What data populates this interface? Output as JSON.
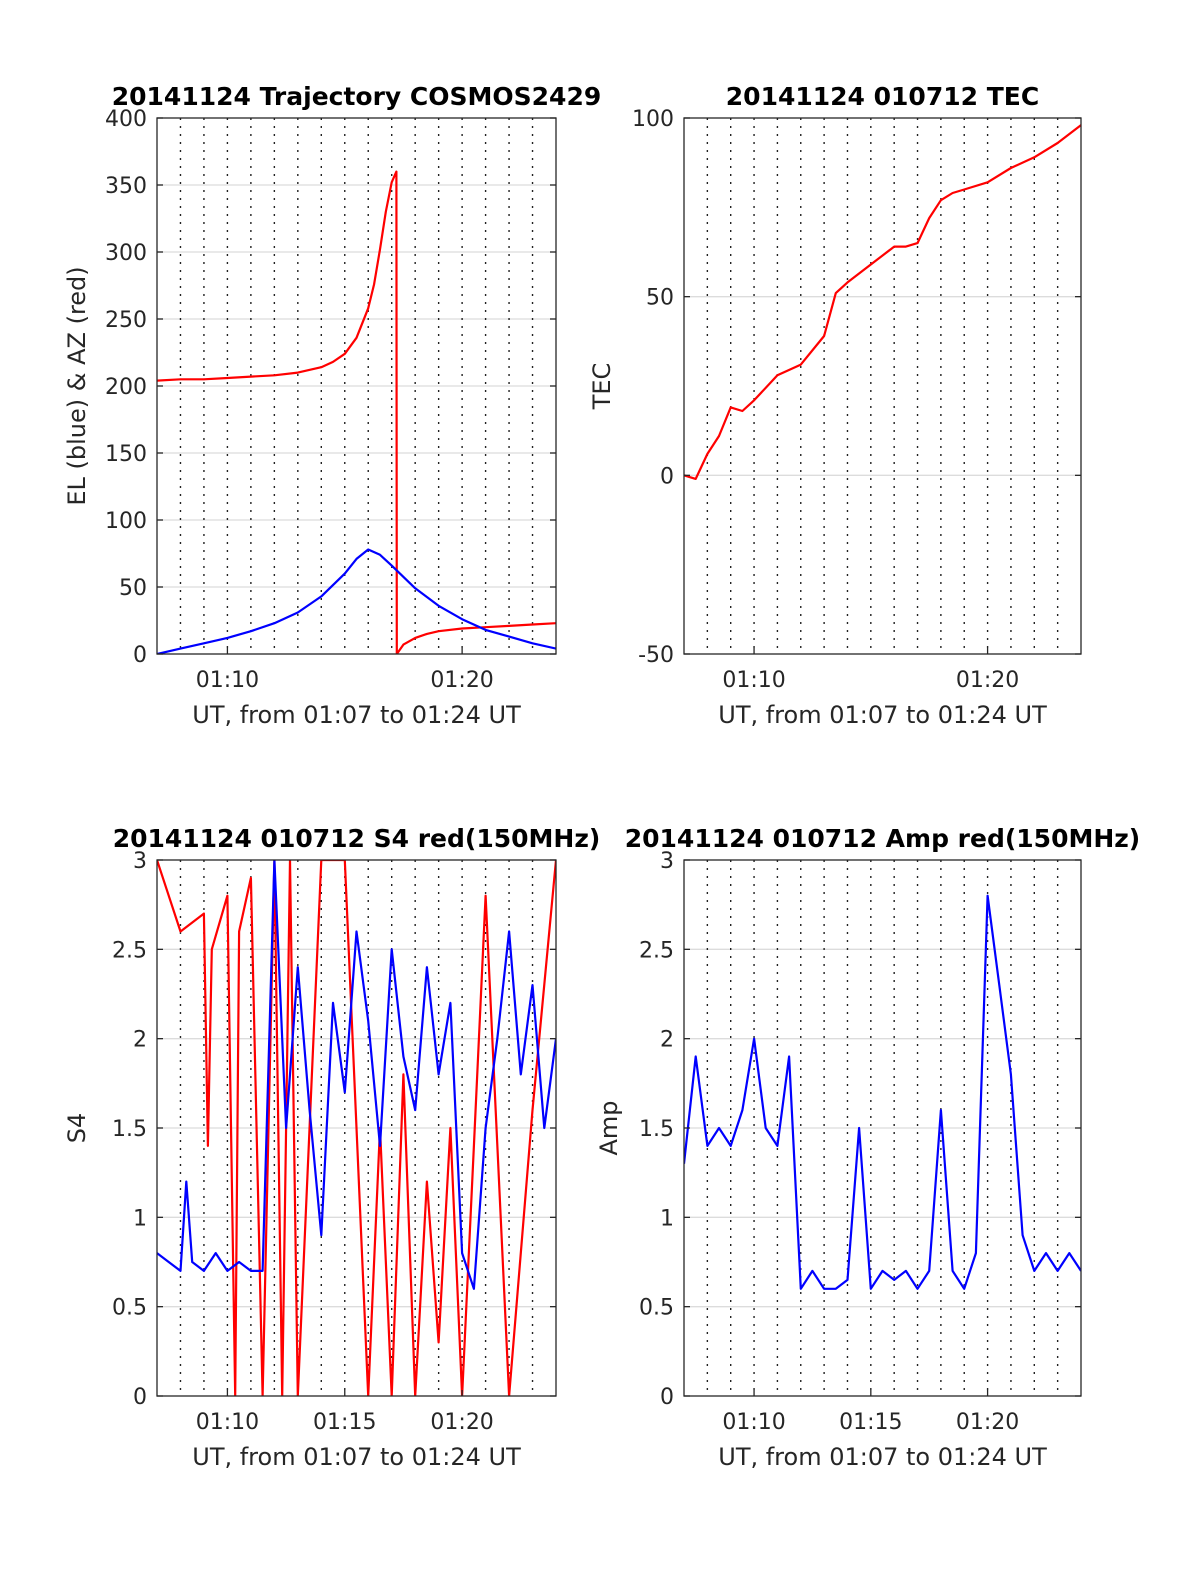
{
  "x_axis": {
    "label": "UT, from 01:07 to 01:24 UT",
    "range": [
      "01:07",
      "01:24"
    ]
  },
  "chart_data": [
    {
      "id": "trajectory",
      "type": "line",
      "title": "20141124 Trajectory COSMOS2429",
      "xlabel": "UT, from 01:07 to 01:24 UT",
      "ylabel": "EL (blue) & AZ (red)",
      "xlim": [
        "01:07",
        "01:24"
      ],
      "ylim": [
        0,
        400
      ],
      "yticks": [
        0,
        50,
        100,
        150,
        200,
        250,
        300,
        350,
        400
      ],
      "xticks": [
        "01:10",
        "01:20"
      ],
      "grid": true,
      "series": [
        {
          "color": "#ff0000",
          "x": [
            "01:07:00",
            "01:08:00",
            "01:09:00",
            "01:10:00",
            "01:11:00",
            "01:12:00",
            "01:13:00",
            "01:14:00",
            "01:14:30",
            "01:15:00",
            "01:15:30",
            "01:16:00",
            "01:16:15",
            "01:16:30",
            "01:16:45",
            "01:17:00",
            "01:17:12",
            "01:17:13",
            "01:17:30",
            "01:18:00",
            "01:18:30",
            "01:19:00",
            "01:20:00",
            "01:21:00",
            "01:22:00",
            "01:23:00",
            "01:24:00"
          ],
          "values": [
            204,
            205,
            205,
            206,
            207,
            208,
            210,
            214,
            218,
            224,
            236,
            258,
            276,
            302,
            330,
            352,
            360,
            0,
            7,
            12,
            15,
            17,
            19,
            20,
            21,
            22,
            23
          ]
        },
        {
          "color": "#0000ff",
          "x": [
            "01:07:00",
            "01:08:00",
            "01:09:00",
            "01:10:00",
            "01:11:00",
            "01:12:00",
            "01:13:00",
            "01:14:00",
            "01:15:00",
            "01:15:30",
            "01:16:00",
            "01:16:30",
            "01:17:00",
            "01:18:00",
            "01:19:00",
            "01:20:00",
            "01:21:00",
            "01:22:00",
            "01:23:00",
            "01:24:00"
          ],
          "values": [
            0,
            4,
            8,
            12,
            17,
            23,
            31,
            43,
            60,
            71,
            78,
            74,
            66,
            49,
            36,
            26,
            18,
            13,
            8,
            4
          ]
        }
      ]
    },
    {
      "id": "tec",
      "type": "line",
      "title": "20141124 010712 TEC",
      "xlabel": "UT, from 01:07 to 01:24 UT",
      "ylabel": "TEC",
      "xlim": [
        "01:07",
        "01:24"
      ],
      "ylim": [
        -50,
        100
      ],
      "yticks": [
        -50,
        0,
        50,
        100
      ],
      "xticks": [
        "01:10",
        "01:20"
      ],
      "grid": true,
      "series": [
        {
          "color": "#ff0000",
          "x": [
            "01:07:00",
            "01:07:30",
            "01:08:00",
            "01:08:30",
            "01:09:00",
            "01:09:30",
            "01:10:00",
            "01:11:00",
            "01:12:00",
            "01:13:00",
            "01:13:30",
            "01:14:00",
            "01:15:00",
            "01:16:00",
            "01:16:30",
            "01:17:00",
            "01:17:30",
            "01:18:00",
            "01:18:30",
            "01:19:00",
            "01:20:00",
            "01:21:00",
            "01:22:00",
            "01:23:00",
            "01:24:00"
          ],
          "values": [
            0,
            -1,
            6,
            11,
            19,
            18,
            21,
            28,
            31,
            39,
            51,
            54,
            59,
            64,
            64,
            65,
            72,
            77,
            79,
            80,
            82,
            86,
            89,
            93,
            98
          ]
        }
      ]
    },
    {
      "id": "s4",
      "type": "line",
      "title": "20141124 010712 S4 red(150MHz)",
      "xlabel": "UT, from 01:07 to 01:24 UT",
      "ylabel": "S4",
      "xlim": [
        "01:07",
        "01:24"
      ],
      "ylim": [
        0,
        3
      ],
      "yticks": [
        0,
        0.5,
        1,
        1.5,
        2,
        2.5,
        3
      ],
      "xticks": [
        "01:10",
        "01:15",
        "01:20"
      ],
      "grid": true,
      "series": [
        {
          "color": "#ff0000",
          "x": [
            "01:07:00",
            "01:08:00",
            "01:09:00",
            "01:09:10",
            "01:09:20",
            "01:10:00",
            "01:10:20",
            "01:10:30",
            "01:11:00",
            "01:11:30",
            "01:12:00",
            "01:12:20",
            "01:12:40",
            "01:13:00",
            "01:14:00",
            "01:15:00",
            "01:16:00",
            "01:16:30",
            "01:17:00",
            "01:17:30",
            "01:18:00",
            "01:18:30",
            "01:19:00",
            "01:19:30",
            "01:20:00",
            "01:20:30",
            "01:21:00",
            "01:22:00",
            "01:23:00",
            "01:24:00"
          ],
          "values": [
            3,
            2.6,
            2.7,
            1.4,
            2.5,
            2.8,
            0,
            2.6,
            2.9,
            0,
            3,
            0,
            3,
            0,
            3,
            3,
            0,
            1.5,
            0,
            1.8,
            0,
            1.2,
            0.3,
            1.5,
            0,
            1.4,
            2.8,
            0,
            1.6,
            3
          ]
        },
        {
          "color": "#0000ff",
          "x": [
            "01:07:00",
            "01:07:30",
            "01:08:00",
            "01:08:15",
            "01:08:30",
            "01:09:00",
            "01:09:30",
            "01:10:00",
            "01:10:30",
            "01:11:00",
            "01:11:30",
            "01:12:00",
            "01:12:30",
            "01:13:00",
            "01:13:30",
            "01:14:00",
            "01:14:30",
            "01:15:00",
            "01:15:30",
            "01:16:00",
            "01:16:30",
            "01:17:00",
            "01:17:30",
            "01:18:00",
            "01:18:30",
            "01:19:00",
            "01:19:30",
            "01:20:00",
            "01:20:30",
            "01:21:00",
            "01:21:30",
            "01:22:00",
            "01:22:30",
            "01:23:00",
            "01:23:30",
            "01:24:00"
          ],
          "values": [
            0.8,
            0.75,
            0.7,
            1.2,
            0.75,
            0.7,
            0.8,
            0.7,
            0.75,
            0.7,
            0.7,
            3,
            1.5,
            2.4,
            1.6,
            0.9,
            2.2,
            1.7,
            2.6,
            2.1,
            1.4,
            2.5,
            1.9,
            1.6,
            2.4,
            1.8,
            2.2,
            0.8,
            0.6,
            1.5,
            2.0,
            2.6,
            1.8,
            2.3,
            1.5,
            2.0
          ]
        }
      ]
    },
    {
      "id": "amp",
      "type": "line",
      "title": "20141124 010712 Amp red(150MHz)",
      "xlabel": "UT, from 01:07 to 01:24 UT",
      "ylabel": "Amp",
      "xlim": [
        "01:07",
        "01:24"
      ],
      "ylim": [
        0,
        3
      ],
      "yticks": [
        0,
        0.5,
        1,
        1.5,
        2,
        2.5,
        3
      ],
      "xticks": [
        "01:10",
        "01:15",
        "01:20"
      ],
      "grid": true,
      "series": [
        {
          "color": "#0000ff",
          "x": [
            "01:07:00",
            "01:07:30",
            "01:08:00",
            "01:08:30",
            "01:09:00",
            "01:09:30",
            "01:10:00",
            "01:10:30",
            "01:11:00",
            "01:11:30",
            "01:12:00",
            "01:12:30",
            "01:13:00",
            "01:13:30",
            "01:14:00",
            "01:14:30",
            "01:15:00",
            "01:15:30",
            "01:16:00",
            "01:16:30",
            "01:17:00",
            "01:17:30",
            "01:18:00",
            "01:18:30",
            "01:19:00",
            "01:19:30",
            "01:20:00",
            "01:20:30",
            "01:21:00",
            "01:21:30",
            "01:22:00",
            "01:22:30",
            "01:23:00",
            "01:23:30",
            "01:24:00"
          ],
          "values": [
            1.3,
            1.9,
            1.4,
            1.5,
            1.4,
            1.6,
            2.0,
            1.5,
            1.4,
            1.9,
            0.6,
            0.7,
            0.6,
            0.6,
            0.65,
            1.5,
            0.6,
            0.7,
            0.65,
            0.7,
            0.6,
            0.7,
            1.6,
            0.7,
            0.6,
            0.8,
            2.8,
            2.3,
            1.8,
            0.9,
            0.7,
            0.8,
            0.7,
            0.8,
            0.7
          ]
        }
      ]
    }
  ]
}
